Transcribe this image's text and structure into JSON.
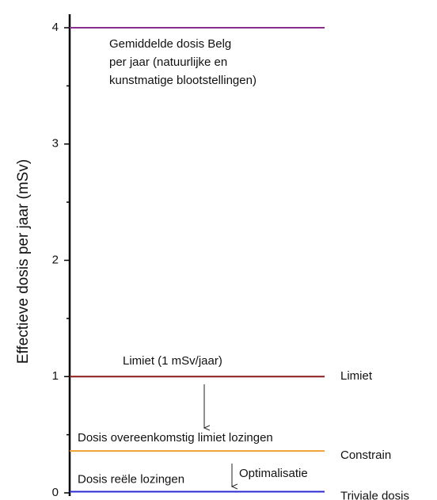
{
  "chart_data": {
    "type": "hlines",
    "ylabel": "Effectieve dosis per jaar (mSv)",
    "ylim": [
      0,
      4
    ],
    "yticks": [
      0,
      1,
      2,
      3,
      4
    ],
    "yminorticks": [
      0.5,
      1.5,
      2.5,
      3.5
    ],
    "lines": [
      {
        "value": 4,
        "color": "#8b2f8f",
        "text": [
          "Gemiddelde dosis Belg",
          "per jaar (natuurlijke en",
          "kunstmatige  blootstellingen)"
        ]
      },
      {
        "value": 1,
        "color": "#8b1a1a",
        "text": [
          "Limiet (1 mSv/jaar)"
        ],
        "side": "Limiet"
      },
      {
        "value": 0.36,
        "color": "#f0a030",
        "text": [
          "Dosis overeenkomstig limiet lozingen"
        ],
        "side": "Constrain"
      },
      {
        "value": 0.01,
        "color": "#2a2ad0",
        "text": [
          "Dosis reële lozingen"
        ],
        "side": "Triviale dosis"
      }
    ],
    "annotation": "Optimalisatie"
  }
}
